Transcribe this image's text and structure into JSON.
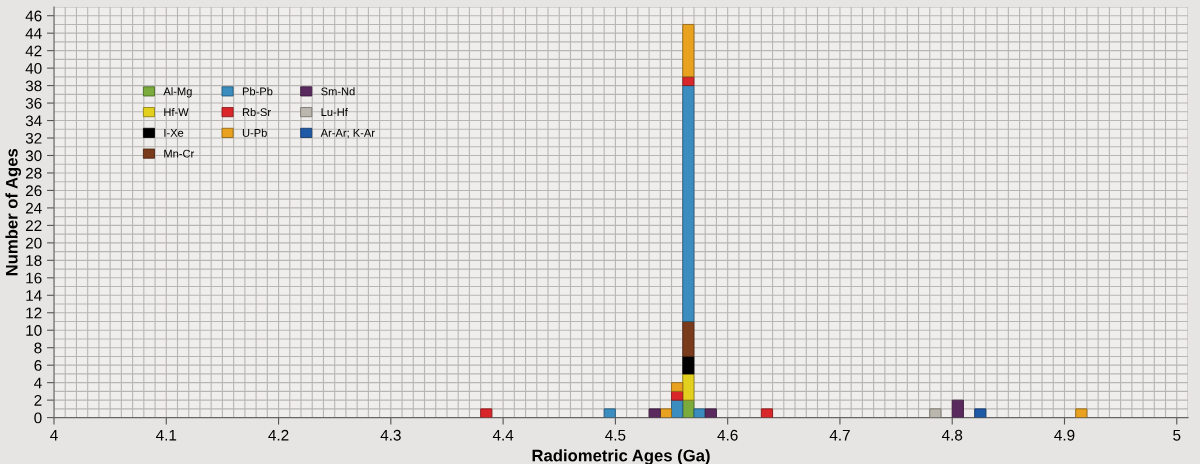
{
  "chart_data": {
    "type": "bar",
    "xlabel": "Radiometric Ages (Ga)",
    "ylabel": "Number of Ages",
    "stacked": true,
    "x": [
      4.385,
      4.495,
      4.535,
      4.545,
      4.555,
      4.565,
      4.575,
      4.585,
      4.635,
      4.785,
      4.805,
      4.825,
      4.915
    ],
    "series": [
      {
        "name": "Al-Mg",
        "color": "#7aab3c",
        "values": [
          null,
          null,
          null,
          null,
          null,
          2,
          null,
          null,
          null,
          null,
          null,
          null,
          null
        ]
      },
      {
        "name": "Hf-W",
        "color": "#e3d01e",
        "values": [
          null,
          null,
          null,
          null,
          null,
          3,
          null,
          null,
          null,
          null,
          null,
          null,
          null
        ]
      },
      {
        "name": "I-Xe",
        "color": "#000000",
        "values": [
          null,
          null,
          null,
          null,
          null,
          2,
          null,
          null,
          null,
          null,
          null,
          null,
          null
        ]
      },
      {
        "name": "Mn-Cr",
        "color": "#7a3a1c",
        "values": [
          null,
          null,
          null,
          null,
          null,
          4,
          null,
          null,
          null,
          null,
          null,
          null,
          null
        ]
      },
      {
        "name": "Pb-Pb",
        "color": "#3b8dc0",
        "values": [
          null,
          1,
          null,
          null,
          2,
          27,
          1,
          null,
          null,
          null,
          null,
          null,
          null
        ]
      },
      {
        "name": "Rb-Sr",
        "color": "#d9262b",
        "values": [
          1,
          null,
          null,
          null,
          1,
          1,
          null,
          null,
          1,
          null,
          null,
          null,
          null
        ]
      },
      {
        "name": "U-Pb",
        "color": "#e9a21f",
        "values": [
          null,
          null,
          null,
          1,
          1,
          6,
          null,
          null,
          null,
          null,
          null,
          null,
          1
        ]
      },
      {
        "name": "Sm-Nd",
        "color": "#5a2a5e",
        "values": [
          null,
          null,
          1,
          null,
          null,
          null,
          null,
          1,
          null,
          null,
          2,
          null,
          null
        ]
      },
      {
        "name": "Lu-Hf",
        "color": "#bcb7ae",
        "values": [
          null,
          null,
          null,
          null,
          null,
          null,
          null,
          null,
          null,
          1,
          null,
          null,
          null
        ]
      },
      {
        "name": "Ar-Ar; K-Ar",
        "color": "#1f5aa6",
        "values": [
          null,
          null,
          null,
          null,
          null,
          null,
          null,
          null,
          null,
          null,
          null,
          1,
          null
        ]
      }
    ],
    "xlim": [
      4,
      5.01
    ],
    "ylim": [
      0,
      47
    ],
    "xticks": [
      4,
      4.1,
      4.2,
      4.3,
      4.4,
      4.5,
      4.6,
      4.7,
      4.8,
      4.9,
      5
    ],
    "yticks": [
      0,
      2,
      4,
      6,
      8,
      10,
      12,
      14,
      16,
      18,
      20,
      22,
      24,
      26,
      28,
      30,
      32,
      34,
      36,
      38,
      40,
      42,
      44,
      46
    ],
    "grid": true,
    "legend": "top left"
  }
}
